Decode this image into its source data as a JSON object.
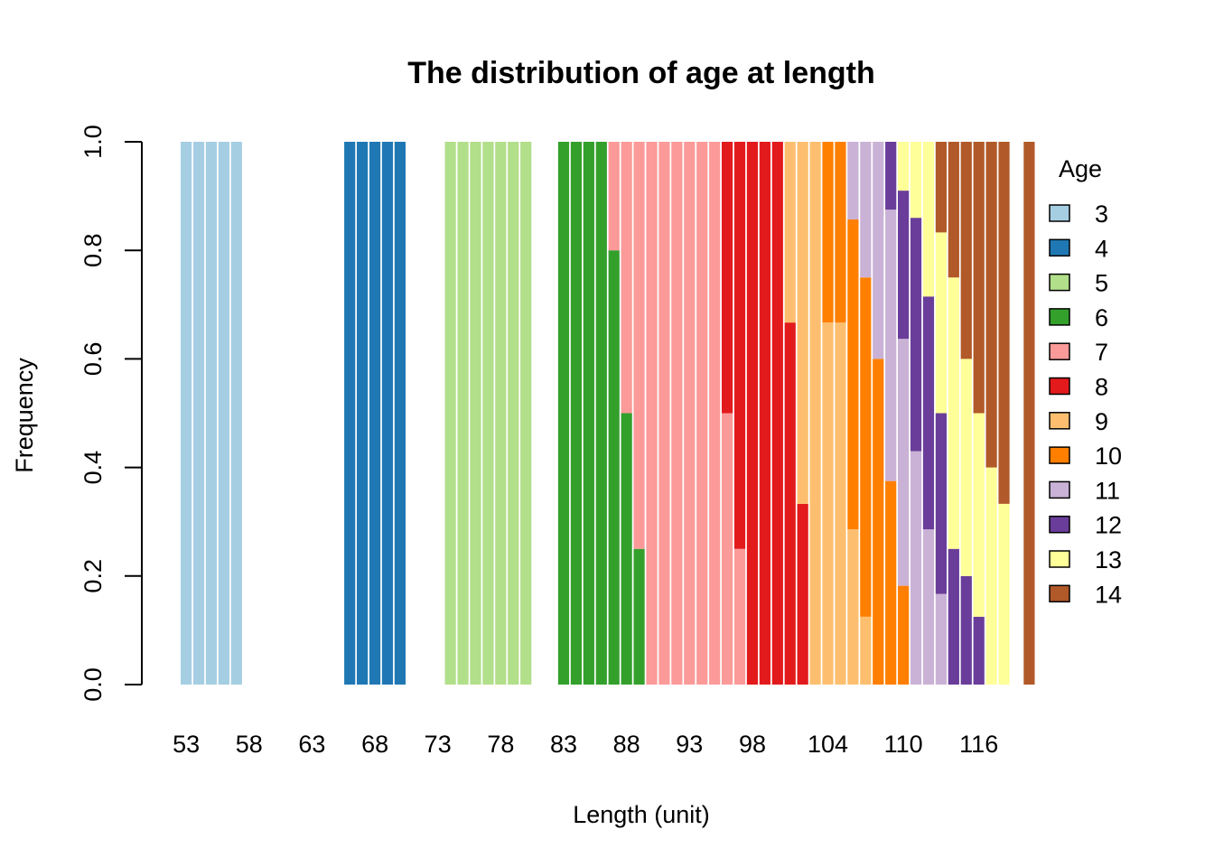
{
  "chart_data": {
    "type": "bar",
    "stacked": true,
    "title": "The distribution of age at length",
    "xlabel": "Length (unit)",
    "ylabel": "Frequency",
    "ylim": [
      0,
      1
    ],
    "yticks": [
      "0.0",
      "0.2",
      "0.4",
      "0.6",
      "0.8",
      "1.0"
    ],
    "xtick_labels": [
      {
        "length": 53,
        "label": "53"
      },
      {
        "length": 58,
        "label": "58"
      },
      {
        "length": 63,
        "label": "63"
      },
      {
        "length": 68,
        "label": "68"
      },
      {
        "length": 73,
        "label": "73"
      },
      {
        "length": 78,
        "label": "78"
      },
      {
        "length": 83,
        "label": "83"
      },
      {
        "length": 88,
        "label": "88"
      },
      {
        "length": 93,
        "label": "93"
      },
      {
        "length": 98,
        "label": "98"
      },
      {
        "length": 104,
        "label": "104"
      },
      {
        "length": 110,
        "label": "110"
      },
      {
        "length": 116,
        "label": "116"
      }
    ],
    "legend": {
      "title": "Age",
      "placement": "right",
      "entries": [
        {
          "age": 3,
          "label": "3",
          "color": "#A6CEE3"
        },
        {
          "age": 4,
          "label": "4",
          "color": "#1F78B4"
        },
        {
          "age": 5,
          "label": "5",
          "color": "#B2DF8A"
        },
        {
          "age": 6,
          "label": "6",
          "color": "#33A02C"
        },
        {
          "age": 7,
          "label": "7",
          "color": "#FB9A99"
        },
        {
          "age": 8,
          "label": "8",
          "color": "#E31A1C"
        },
        {
          "age": 9,
          "label": "9",
          "color": "#FDBF6F"
        },
        {
          "age": 10,
          "label": "10",
          "color": "#FF7F00"
        },
        {
          "age": 11,
          "label": "11",
          "color": "#CAB2D6"
        },
        {
          "age": 12,
          "label": "12",
          "color": "#6A3D9A"
        },
        {
          "age": 13,
          "label": "13",
          "color": "#FFFF99"
        },
        {
          "age": 14,
          "label": "14",
          "color": "#B15928"
        }
      ]
    },
    "bars": [
      {
        "length": 53,
        "segments": [
          {
            "age": 3,
            "p": 1
          }
        ]
      },
      {
        "length": 54,
        "segments": [
          {
            "age": 3,
            "p": 1
          }
        ]
      },
      {
        "length": 55,
        "segments": [
          {
            "age": 3,
            "p": 1
          }
        ]
      },
      {
        "length": 56,
        "segments": [
          {
            "age": 3,
            "p": 1
          }
        ]
      },
      {
        "length": 57,
        "segments": [
          {
            "age": 3,
            "p": 1
          }
        ]
      },
      {
        "length": 58,
        "segments": []
      },
      {
        "length": 59,
        "segments": []
      },
      {
        "length": 60,
        "segments": []
      },
      {
        "length": 61,
        "segments": []
      },
      {
        "length": 62,
        "segments": []
      },
      {
        "length": 63,
        "segments": []
      },
      {
        "length": 64,
        "segments": []
      },
      {
        "length": 65,
        "segments": []
      },
      {
        "length": 66,
        "segments": [
          {
            "age": 4,
            "p": 1
          }
        ]
      },
      {
        "length": 67,
        "segments": [
          {
            "age": 4,
            "p": 1
          }
        ]
      },
      {
        "length": 68,
        "segments": [
          {
            "age": 4,
            "p": 1
          }
        ]
      },
      {
        "length": 69,
        "segments": [
          {
            "age": 4,
            "p": 1
          }
        ]
      },
      {
        "length": 70,
        "segments": [
          {
            "age": 4,
            "p": 1
          }
        ]
      },
      {
        "length": 71,
        "segments": []
      },
      {
        "length": 72,
        "segments": []
      },
      {
        "length": 73,
        "segments": []
      },
      {
        "length": 74,
        "segments": [
          {
            "age": 5,
            "p": 1
          }
        ]
      },
      {
        "length": 75,
        "segments": [
          {
            "age": 5,
            "p": 1
          }
        ]
      },
      {
        "length": 76,
        "segments": [
          {
            "age": 5,
            "p": 1
          }
        ]
      },
      {
        "length": 77,
        "segments": [
          {
            "age": 5,
            "p": 1
          }
        ]
      },
      {
        "length": 78,
        "segments": [
          {
            "age": 5,
            "p": 1
          }
        ]
      },
      {
        "length": 79,
        "segments": [
          {
            "age": 5,
            "p": 1
          }
        ]
      },
      {
        "length": 80,
        "segments": [
          {
            "age": 5,
            "p": 1
          }
        ]
      },
      {
        "length": 81,
        "segments": []
      },
      {
        "length": 82,
        "segments": []
      },
      {
        "length": 83,
        "segments": [
          {
            "age": 6,
            "p": 1
          }
        ]
      },
      {
        "length": 84,
        "segments": [
          {
            "age": 6,
            "p": 1
          }
        ]
      },
      {
        "length": 85,
        "segments": [
          {
            "age": 6,
            "p": 1
          }
        ]
      },
      {
        "length": 86,
        "segments": [
          {
            "age": 6,
            "p": 1
          }
        ]
      },
      {
        "length": 87,
        "segments": [
          {
            "age": 6,
            "p": 0.8
          },
          {
            "age": 7,
            "p": 0.2
          }
        ]
      },
      {
        "length": 88,
        "segments": [
          {
            "age": 6,
            "p": 0.5
          },
          {
            "age": 7,
            "p": 0.5
          }
        ]
      },
      {
        "length": 89,
        "segments": [
          {
            "age": 6,
            "p": 0.25
          },
          {
            "age": 7,
            "p": 0.75
          }
        ]
      },
      {
        "length": 90,
        "segments": [
          {
            "age": 7,
            "p": 1
          }
        ]
      },
      {
        "length": 91,
        "segments": [
          {
            "age": 7,
            "p": 1
          }
        ]
      },
      {
        "length": 92,
        "segments": [
          {
            "age": 7,
            "p": 1
          }
        ]
      },
      {
        "length": 93,
        "segments": [
          {
            "age": 7,
            "p": 1
          }
        ]
      },
      {
        "length": 94,
        "segments": [
          {
            "age": 7,
            "p": 1
          }
        ]
      },
      {
        "length": 95,
        "segments": [
          {
            "age": 7,
            "p": 1
          }
        ]
      },
      {
        "length": 96,
        "segments": [
          {
            "age": 7,
            "p": 0.5
          },
          {
            "age": 8,
            "p": 0.5
          }
        ]
      },
      {
        "length": 97,
        "segments": [
          {
            "age": 7,
            "p": 0.25
          },
          {
            "age": 8,
            "p": 0.75
          }
        ]
      },
      {
        "length": 98,
        "segments": [
          {
            "age": 8,
            "p": 1
          }
        ]
      },
      {
        "length": 99,
        "segments": [
          {
            "age": 8,
            "p": 1
          }
        ]
      },
      {
        "length": 100,
        "segments": [
          {
            "age": 8,
            "p": 1
          }
        ]
      },
      {
        "length": 101,
        "segments": [
          {
            "age": 8,
            "p": 0.667
          },
          {
            "age": 9,
            "p": 0.333
          }
        ]
      },
      {
        "length": 102,
        "segments": [
          {
            "age": 8,
            "p": 0.333
          },
          {
            "age": 9,
            "p": 0.667
          }
        ]
      },
      {
        "length": 103,
        "segments": [
          {
            "age": 9,
            "p": 1
          }
        ]
      },
      {
        "length": 104,
        "segments": [
          {
            "age": 9,
            "p": 0.667
          },
          {
            "age": 10,
            "p": 0.333
          }
        ]
      },
      {
        "length": 105,
        "segments": [
          {
            "age": 9,
            "p": 0.667
          },
          {
            "age": 10,
            "p": 0.333
          }
        ]
      },
      {
        "length": 106,
        "segments": [
          {
            "age": 9,
            "p": 0.286
          },
          {
            "age": 10,
            "p": 0.571
          },
          {
            "age": 11,
            "p": 0.143
          }
        ]
      },
      {
        "length": 107,
        "segments": [
          {
            "age": 9,
            "p": 0.125
          },
          {
            "age": 10,
            "p": 0.625
          },
          {
            "age": 11,
            "p": 0.25
          }
        ]
      },
      {
        "length": 108,
        "segments": [
          {
            "age": 10,
            "p": 0.6
          },
          {
            "age": 11,
            "p": 0.4
          }
        ]
      },
      {
        "length": 109,
        "segments": [
          {
            "age": 10,
            "p": 0.375
          },
          {
            "age": 11,
            "p": 0.5
          },
          {
            "age": 12,
            "p": 0.125
          }
        ]
      },
      {
        "length": 110,
        "segments": [
          {
            "age": 10,
            "p": 0.182
          },
          {
            "age": 11,
            "p": 0.455
          },
          {
            "age": 12,
            "p": 0.273
          },
          {
            "age": 13,
            "p": 0.09
          }
        ]
      },
      {
        "length": 111,
        "segments": [
          {
            "age": 11,
            "p": 0.43
          },
          {
            "age": 12,
            "p": 0.43
          },
          {
            "age": 13,
            "p": 0.14
          }
        ]
      },
      {
        "length": 112,
        "segments": [
          {
            "age": 11,
            "p": 0.286
          },
          {
            "age": 12,
            "p": 0.429
          },
          {
            "age": 13,
            "p": 0.285
          }
        ]
      },
      {
        "length": 113,
        "segments": [
          {
            "age": 11,
            "p": 0.167
          },
          {
            "age": 12,
            "p": 0.333
          },
          {
            "age": 13,
            "p": 0.333
          },
          {
            "age": 14,
            "p": 0.167
          }
        ]
      },
      {
        "length": 114,
        "segments": [
          {
            "age": 12,
            "p": 0.25
          },
          {
            "age": 13,
            "p": 0.5
          },
          {
            "age": 14,
            "p": 0.25
          }
        ]
      },
      {
        "length": 115,
        "segments": [
          {
            "age": 12,
            "p": 0.2
          },
          {
            "age": 13,
            "p": 0.4
          },
          {
            "age": 14,
            "p": 0.4
          }
        ]
      },
      {
        "length": 116,
        "segments": [
          {
            "age": 12,
            "p": 0.125
          },
          {
            "age": 13,
            "p": 0.375
          },
          {
            "age": 14,
            "p": 0.5
          }
        ]
      },
      {
        "length": 117,
        "segments": [
          {
            "age": 13,
            "p": 0.4
          },
          {
            "age": 14,
            "p": 0.6
          }
        ]
      },
      {
        "length": 118,
        "segments": [
          {
            "age": 13,
            "p": 0.333
          },
          {
            "age": 14,
            "p": 0.667
          }
        ]
      },
      {
        "length": 119,
        "segments": []
      },
      {
        "length": 120,
        "segments": [
          {
            "age": 14,
            "p": 1
          }
        ]
      }
    ]
  }
}
